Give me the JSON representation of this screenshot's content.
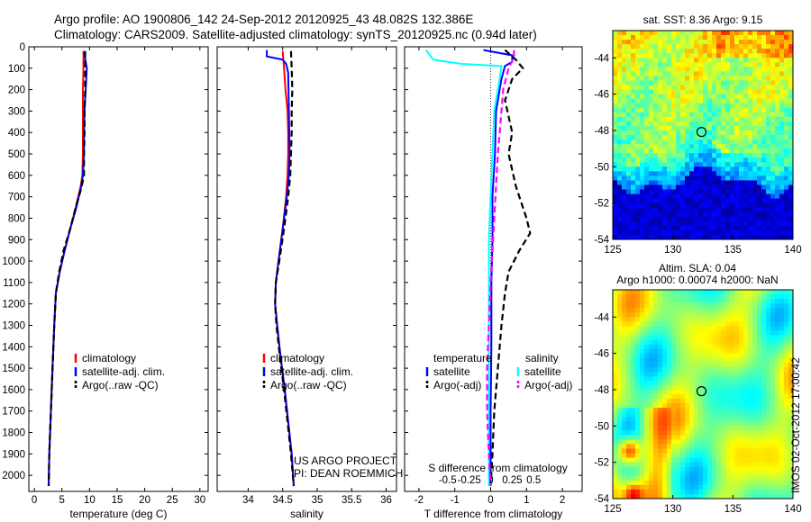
{
  "header": {
    "title_line1": "Argo profile: AO 1900806_142 24-Sep-2012 20120925_43 48.082S 132.386E",
    "title_line2": "Climatology: CARS2009. Satellite-adjusted climatology: synTS_20120925.nc (0.94d later)"
  },
  "credit": {
    "line1": "US ARGO PROJECT",
    "line2": "PI: DEAN ROEMMICH"
  },
  "timestamp": "IMOS 02-Oct-2012 17:00:42",
  "colors": {
    "climatology": "#ff0000",
    "satellite": "#0000ff",
    "argo": "#000000",
    "salinity_satellite": "#00ffff",
    "salinity_argo": "#ff00ff"
  },
  "depth_ticks": [
    0,
    100,
    200,
    300,
    400,
    500,
    600,
    700,
    800,
    900,
    1000,
    1100,
    1200,
    1300,
    1400,
    1500,
    1600,
    1700,
    1800,
    1900,
    2000
  ],
  "chart_data": [
    {
      "id": "temperature",
      "type": "line",
      "xlabel": "temperature (deg C)",
      "xlim": [
        -1,
        31.5
      ],
      "ylim": [
        0,
        2075
      ],
      "x_ticks": [
        0,
        5,
        10,
        15,
        20,
        25,
        30
      ],
      "legend": [
        "climatology",
        "satellite-adj. clim.",
        "Argo(..raw -QC)"
      ],
      "legend_placement": "lower-center",
      "series": [
        {
          "name": "climatology",
          "role": "climatology",
          "style": "solid",
          "points": [
            [
              8.9,
              20
            ],
            [
              8.9,
              100
            ],
            [
              8.8,
              200
            ],
            [
              8.8,
              300
            ],
            [
              8.8,
              400
            ],
            [
              8.8,
              500
            ],
            [
              8.7,
              600
            ],
            [
              8.4,
              650
            ],
            [
              7.5,
              750
            ],
            [
              6.5,
              850
            ],
            [
              5.5,
              950
            ],
            [
              4.6,
              1050
            ],
            [
              3.9,
              1150
            ],
            [
              3.6,
              1300
            ],
            [
              3.3,
              1500
            ],
            [
              3.0,
              1700
            ],
            [
              2.7,
              1900
            ],
            [
              2.6,
              2050
            ]
          ]
        },
        {
          "name": "satellite-adj. clim.",
          "role": "satellite",
          "style": "solid",
          "points": [
            [
              9.0,
              20
            ],
            [
              9.5,
              100
            ],
            [
              9.3,
              200
            ],
            [
              9.1,
              300
            ],
            [
              9.0,
              400
            ],
            [
              9.0,
              500
            ],
            [
              8.8,
              600
            ],
            [
              8.5,
              650
            ],
            [
              7.6,
              750
            ],
            [
              6.5,
              850
            ],
            [
              5.5,
              950
            ],
            [
              4.6,
              1050
            ],
            [
              3.9,
              1150
            ],
            [
              3.6,
              1300
            ],
            [
              3.3,
              1500
            ],
            [
              3.0,
              1700
            ],
            [
              2.7,
              1900
            ],
            [
              2.6,
              2050
            ]
          ]
        },
        {
          "name": "Argo(..raw -QC)",
          "role": "argo",
          "style": "dashed",
          "points": [
            [
              9.2,
              20
            ],
            [
              9.2,
              100
            ],
            [
              9.2,
              200
            ],
            [
              9.1,
              300
            ],
            [
              9.1,
              400
            ],
            [
              9.0,
              500
            ],
            [
              9.0,
              600
            ],
            [
              8.5,
              660
            ],
            [
              7.5,
              750
            ],
            [
              6.5,
              850
            ],
            [
              5.3,
              950
            ],
            [
              4.5,
              1050
            ],
            [
              3.9,
              1150
            ],
            [
              3.6,
              1300
            ],
            [
              3.3,
              1500
            ],
            [
              3.0,
              1700
            ],
            [
              2.7,
              1900
            ],
            [
              2.6,
              2050
            ]
          ]
        }
      ]
    },
    {
      "id": "salinity",
      "type": "line",
      "xlabel": "salinity",
      "xlim": [
        33.55,
        36.15
      ],
      "ylim": [
        0,
        2075
      ],
      "x_ticks": [
        34,
        34.5,
        35,
        35.5,
        36
      ],
      "legend": [
        "climatology",
        "satellite-adj. clim.",
        "Argo(..raw -QC)"
      ],
      "legend_placement": "lower-center",
      "series": [
        {
          "name": "climatology",
          "role": "climatology",
          "style": "solid",
          "points": [
            [
              34.5,
              20
            ],
            [
              34.52,
              100
            ],
            [
              34.54,
              200
            ],
            [
              34.57,
              300
            ],
            [
              34.58,
              400
            ],
            [
              34.58,
              500
            ],
            [
              34.57,
              600
            ],
            [
              34.55,
              700
            ],
            [
              34.5,
              850
            ],
            [
              34.44,
              1000
            ],
            [
              34.4,
              1100
            ],
            [
              34.39,
              1200
            ],
            [
              34.42,
              1300
            ],
            [
              34.47,
              1450
            ],
            [
              34.53,
              1600
            ],
            [
              34.58,
              1750
            ],
            [
              34.63,
              1900
            ],
            [
              34.66,
              2050
            ]
          ]
        },
        {
          "name": "satellite-adj. clim.",
          "role": "satellite",
          "style": "solid",
          "points": [
            [
              34.27,
              15
            ],
            [
              34.27,
              45
            ],
            [
              34.5,
              60
            ],
            [
              34.55,
              80
            ],
            [
              34.58,
              120
            ],
            [
              34.59,
              300
            ],
            [
              34.6,
              500
            ],
            [
              34.59,
              600
            ],
            [
              34.56,
              700
            ],
            [
              34.5,
              850
            ],
            [
              34.44,
              1000
            ],
            [
              34.4,
              1100
            ],
            [
              34.39,
              1200
            ],
            [
              34.42,
              1300
            ],
            [
              34.47,
              1450
            ],
            [
              34.53,
              1600
            ],
            [
              34.58,
              1750
            ],
            [
              34.63,
              1900
            ],
            [
              34.66,
              2050
            ]
          ]
        },
        {
          "name": "Argo(..raw -QC)",
          "role": "argo",
          "style": "dashed",
          "points": [
            [
              34.62,
              20
            ],
            [
              34.63,
              100
            ],
            [
              34.64,
              200
            ],
            [
              34.63,
              300
            ],
            [
              34.63,
              400
            ],
            [
              34.62,
              500
            ],
            [
              34.61,
              600
            ],
            [
              34.58,
              700
            ],
            [
              34.52,
              850
            ],
            [
              34.45,
              1000
            ],
            [
              34.4,
              1100
            ],
            [
              34.39,
              1200
            ],
            [
              34.41,
              1300
            ],
            [
              34.46,
              1450
            ],
            [
              34.52,
              1600
            ],
            [
              34.57,
              1750
            ],
            [
              34.62,
              1900
            ],
            [
              34.66,
              2050
            ]
          ]
        }
      ]
    },
    {
      "id": "difference",
      "type": "line",
      "xlabel": "T difference from climatology",
      "xlabel_top": "S difference from climatology",
      "xlim": [
        -2.4,
        2.55
      ],
      "ylim": [
        0,
        2075
      ],
      "x_ticks": [
        -2,
        -1,
        0,
        1,
        2
      ],
      "x_ticks_top": [
        -0.5,
        -0.25,
        0,
        0.25,
        0.5
      ],
      "legend_temperature": "temperature",
      "legend_salinity": "salinity",
      "legend": [
        "satellite",
        "Argo(-adj)",
        "satellite",
        "Argo(-adj)"
      ],
      "legend_placement": "lower-center",
      "series": [
        {
          "name": "temperature satellite",
          "role": "satellite",
          "style": "solid",
          "points": [
            [
              -0.2,
              15
            ],
            [
              0.6,
              40
            ],
            [
              0.6,
              70
            ],
            [
              0.4,
              90
            ],
            [
              0.3,
              150
            ],
            [
              0.15,
              300
            ],
            [
              0.12,
              500
            ],
            [
              0.05,
              700
            ],
            [
              0.05,
              900
            ],
            [
              0.02,
              1100
            ],
            [
              0.02,
              1400
            ],
            [
              0.0,
              1700
            ],
            [
              0.0,
              2050
            ]
          ]
        },
        {
          "name": "temperature Argo(-adj)",
          "role": "argo",
          "style": "dashed",
          "points": [
            [
              0.4,
              15
            ],
            [
              0.7,
              60
            ],
            [
              0.9,
              100
            ],
            [
              0.6,
              150
            ],
            [
              0.4,
              250
            ],
            [
              0.6,
              400
            ],
            [
              0.5,
              500
            ],
            [
              0.7,
              650
            ],
            [
              1.0,
              800
            ],
            [
              1.1,
              870
            ],
            [
              0.8,
              950
            ],
            [
              0.5,
              1050
            ],
            [
              0.4,
              1150
            ],
            [
              0.3,
              1300
            ],
            [
              0.2,
              1500
            ],
            [
              0.1,
              1700
            ],
            [
              0.05,
              1900
            ],
            [
              0.0,
              2050
            ]
          ]
        },
        {
          "name": "salinity satellite",
          "role": "salinity_satellite",
          "style": "solid",
          "points": [
            [
              -1.8,
              15
            ],
            [
              -1.6,
              60
            ],
            [
              -0.8,
              80
            ],
            [
              0.3,
              90
            ],
            [
              0.25,
              150
            ],
            [
              0.1,
              300
            ],
            [
              0.05,
              500
            ],
            [
              0.0,
              700
            ],
            [
              -0.05,
              900
            ],
            [
              -0.05,
              1100
            ],
            [
              -0.05,
              1400
            ],
            [
              -0.05,
              1700
            ],
            [
              -0.05,
              2050
            ]
          ]
        },
        {
          "name": "salinity Argo(-adj)",
          "role": "salinity_argo",
          "style": "dashed",
          "points": [
            [
              0.65,
              15
            ],
            [
              0.65,
              50
            ],
            [
              0.5,
              100
            ],
            [
              0.35,
              200
            ],
            [
              0.3,
              300
            ],
            [
              0.25,
              400
            ],
            [
              0.2,
              500
            ],
            [
              0.15,
              650
            ],
            [
              0.1,
              800
            ],
            [
              0.05,
              950
            ],
            [
              0.0,
              1100
            ],
            [
              -0.05,
              1300
            ],
            [
              -0.1,
              1500
            ],
            [
              -0.1,
              1700
            ],
            [
              -0.05,
              1900
            ],
            [
              0.0,
              2050
            ]
          ]
        }
      ]
    },
    {
      "id": "sst-map",
      "type": "heatmap",
      "title": "sat. SST: 8.36 Argo: 9.15",
      "xlim": [
        125,
        140
      ],
      "ylim": [
        -54,
        -42.5
      ],
      "x_ticks": [
        125,
        130,
        135,
        140
      ],
      "y_ticks": [
        -44,
        -46,
        -48,
        -50,
        -52,
        -54
      ],
      "marker": [
        132.386,
        -48.082
      ]
    },
    {
      "id": "sla-map",
      "type": "heatmap",
      "title": "Altim. SLA: 0.04",
      "subtitle": "Argo h1000: 0.00074 h2000: NaN",
      "xlim": [
        125,
        140
      ],
      "ylim": [
        -54,
        -42.5
      ],
      "x_ticks": [
        125,
        130,
        135,
        140
      ],
      "y_ticks": [
        -44,
        -46,
        -48,
        -50,
        -52,
        -54
      ],
      "marker": [
        132.386,
        -48.082
      ]
    }
  ]
}
